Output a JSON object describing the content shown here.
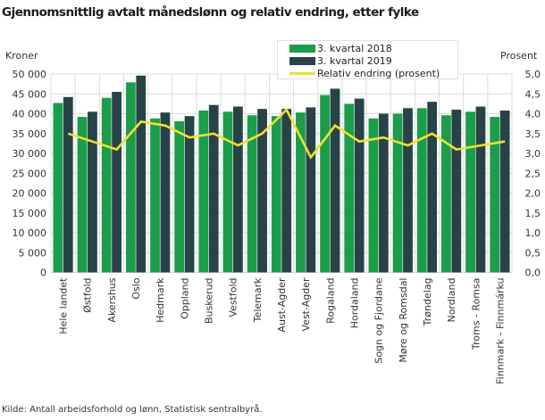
{
  "title": "Gjennomsnittlig avtalt månedslønn og relativ endring, etter fylke",
  "left_axis_title": "Kroner",
  "right_axis_title": "Prosent",
  "source": "Kilde: Antall arbeidsforhold og lønn, Statistisk sentralbyrå.",
  "colors": {
    "series_2018": "#1b9d4a",
    "series_2019": "#284348",
    "line": "#f0e130",
    "grid": "#dcdcdc"
  },
  "legend": [
    {
      "label": "3. kvartal 2018",
      "type": "bar",
      "color": "#1b9d4a"
    },
    {
      "label": "3. kvartal 2019",
      "type": "bar",
      "color": "#284348"
    },
    {
      "label": "Relativ endring (prosent)",
      "type": "line",
      "color": "#f0e130"
    }
  ],
  "left_ticks": [
    "0",
    "5 000",
    "10 000",
    "15 000",
    "20 000",
    "25 000",
    "30 000",
    "35 000",
    "40 000",
    "45 000",
    "50 000"
  ],
  "right_ticks": [
    "0,0",
    "0,5",
    "1,0",
    "1,5",
    "2,0",
    "2,5",
    "3,0",
    "3,5",
    "4,0",
    "4,5",
    "5,0"
  ],
  "chart_data": {
    "type": "bar",
    "title": "Gjennomsnittlig avtalt månedslønn og relativ endring, etter fylke",
    "xlabel": "",
    "ylabel": "Kroner",
    "y2label": "Prosent",
    "ylim": [
      0,
      50000
    ],
    "y2lim": [
      0,
      5.0
    ],
    "grid": true,
    "legend_position": "top-center",
    "categories": [
      "Hele landet",
      "Østfold",
      "Akershus",
      "Oslo",
      "Hedmark",
      "Oppland",
      "Buskerud",
      "Vestfold",
      "Telemark",
      "Aust-Agder",
      "Vest-Agder",
      "Rogaland",
      "Hordaland",
      "Sogn og Fjordane",
      "Møre og Romsdal",
      "Trøndelag",
      "Nordland",
      "Troms - Romsa",
      "Finnmark - Finnmárku"
    ],
    "series": [
      {
        "name": "3. kvartal 2018",
        "type": "bar",
        "axis": "left",
        "values": [
          42700,
          39200,
          44000,
          47900,
          38800,
          38100,
          40800,
          40500,
          39600,
          39400,
          40300,
          44700,
          42500,
          38800,
          40000,
          41400,
          39600,
          40500,
          39200
        ]
      },
      {
        "name": "3. kvartal 2019",
        "type": "bar",
        "axis": "left",
        "values": [
          44200,
          40500,
          45500,
          49600,
          40300,
          39400,
          42200,
          41800,
          41200,
          41200,
          41600,
          46300,
          43800,
          40000,
          41400,
          43000,
          41000,
          41800,
          40800
        ]
      },
      {
        "name": "Relativ endring (prosent)",
        "type": "line",
        "axis": "right",
        "values": [
          3.5,
          3.3,
          3.1,
          3.8,
          3.7,
          3.4,
          3.5,
          3.2,
          3.5,
          4.1,
          2.9,
          3.7,
          3.3,
          3.4,
          3.2,
          3.5,
          3.1,
          3.2,
          3.3
        ]
      }
    ]
  }
}
